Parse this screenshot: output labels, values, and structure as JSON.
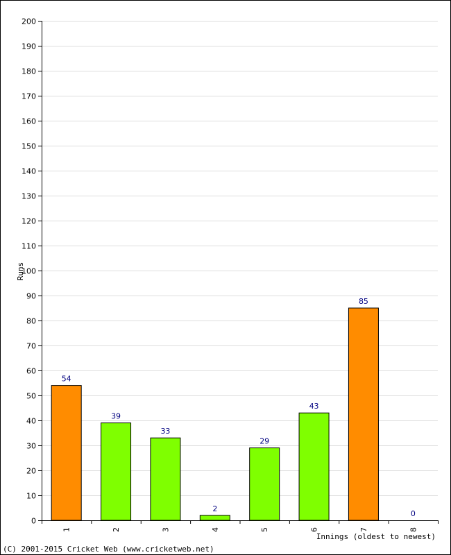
{
  "chart_data": {
    "type": "bar",
    "title": "",
    "xlabel": "Innings (oldest to newest)",
    "ylabel": "Runs",
    "categories": [
      "1",
      "2",
      "3",
      "4",
      "5",
      "6",
      "7",
      "8"
    ],
    "values": [
      54,
      39,
      33,
      2,
      29,
      43,
      85,
      0
    ],
    "bar_colors": [
      "#ff8c00",
      "#7fff00",
      "#7fff00",
      "#7fff00",
      "#7fff00",
      "#7fff00",
      "#ff8c00",
      "#7fff00"
    ],
    "ylim": [
      0,
      200
    ],
    "ytick_step": 10,
    "grid": true,
    "data_labels": true
  },
  "colors": {
    "highlight_bar": "#ff8c00",
    "normal_bar": "#7fff00",
    "bar_outline": "#000000",
    "grid": "#dddddd",
    "data_label": "#000080"
  },
  "footer": {
    "copyright": "(C) 2001-2015 Cricket Web (www.cricketweb.net)"
  }
}
